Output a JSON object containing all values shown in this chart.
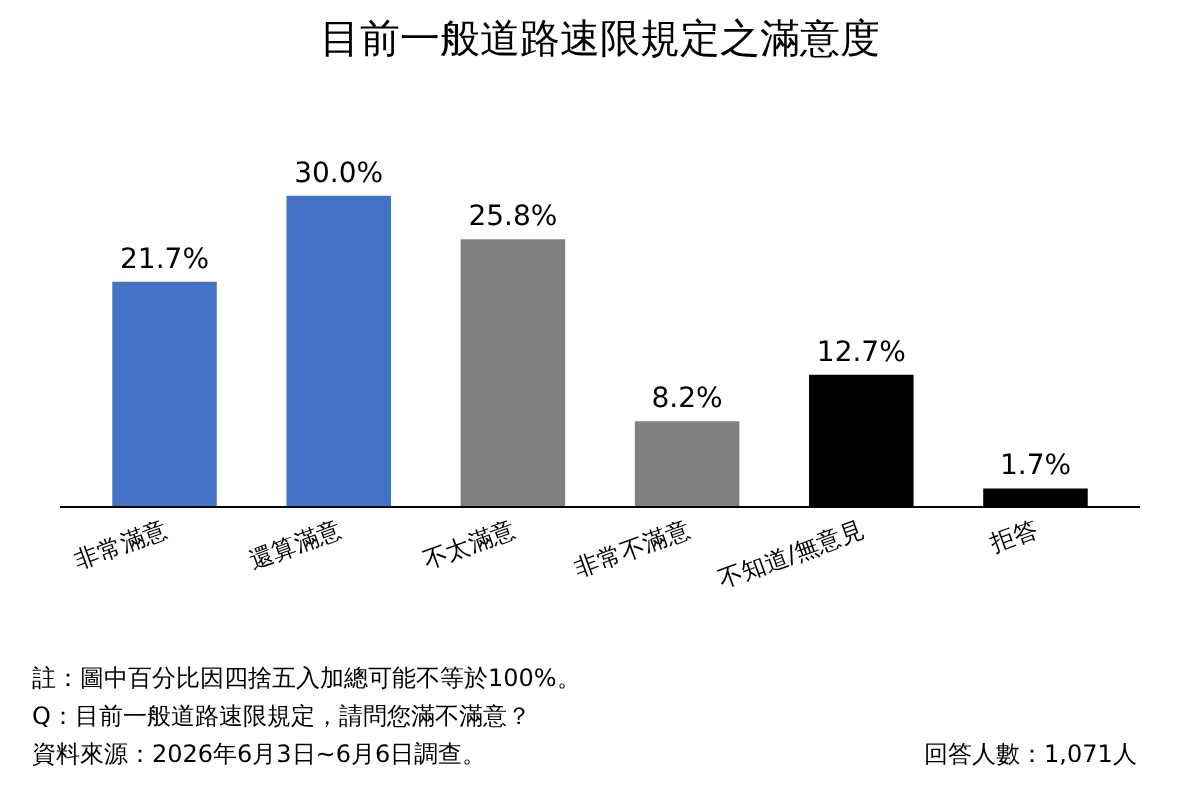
{
  "chart_data": {
    "type": "bar",
    "title": "目前一般道路速限規定之滿意度",
    "categories": [
      "非常滿意",
      "還算滿意",
      "不太滿意",
      "非常不滿意",
      "不知道/無意見",
      "拒答"
    ],
    "values": [
      21.7,
      30.0,
      25.8,
      8.2,
      12.7,
      1.7
    ],
    "value_labels": [
      "21.7%",
      "30.0%",
      "25.8%",
      "8.2%",
      "12.7%",
      "1.7%"
    ],
    "colors": [
      "#4472c4",
      "#4472c4",
      "#808080",
      "#808080",
      "#000000",
      "#000000"
    ],
    "legend": false,
    "annotations": [
      "註：圖中百分比因四捨五入加總可能不等於100%。",
      "Q：目前一般道路速限規定，請問您滿不滿意？",
      "資料來源：2026年6月3日~6月6日調查。",
      "回答人數：1,071人"
    ]
  }
}
